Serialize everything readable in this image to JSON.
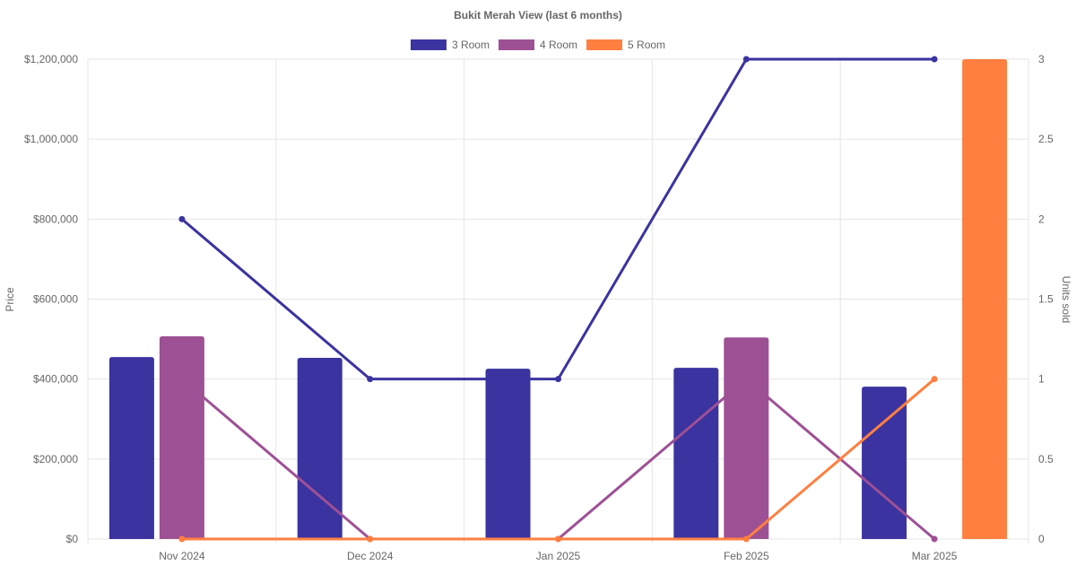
{
  "chart_data": {
    "type": "bar",
    "title": "Bukit Merah View (last 6 months)",
    "categories": [
      "Nov 2024",
      "Dec 2024",
      "Jan 2025",
      "Feb 2025",
      "Mar 2025"
    ],
    "y_left": {
      "label": "Price",
      "range": [
        0,
        1200000
      ],
      "ticks": [
        0,
        200000,
        400000,
        600000,
        800000,
        1000000,
        1200000
      ],
      "tick_labels": [
        "$0",
        "$200,000",
        "$400,000",
        "$600,000",
        "$800,000",
        "$1,000,000",
        "$1,200,000"
      ]
    },
    "y_right": {
      "label": "Units sold",
      "range": [
        0,
        3
      ],
      "ticks": [
        0,
        0.5,
        1,
        1.5,
        2,
        2.5,
        3
      ],
      "tick_labels": [
        "0",
        "0.5",
        "1",
        "1.5",
        "2",
        "2.5",
        "3"
      ]
    },
    "legend_position": "top",
    "grid": true,
    "series": [
      {
        "name": "3 Room",
        "color": "#3a33a0",
        "price": [
          455000,
          453000,
          426000,
          428000,
          381000
        ],
        "units": [
          2,
          1,
          1,
          3,
          3
        ]
      },
      {
        "name": "4 Room",
        "color": "#9e5094",
        "price": [
          507000,
          null,
          null,
          504000,
          null
        ],
        "units": [
          1,
          0,
          0,
          1,
          0
        ]
      },
      {
        "name": "5 Room",
        "color": "#ff7f40",
        "price": [
          null,
          null,
          null,
          null,
          1200000
        ],
        "units": [
          0,
          0,
          0,
          0,
          1
        ]
      }
    ]
  }
}
